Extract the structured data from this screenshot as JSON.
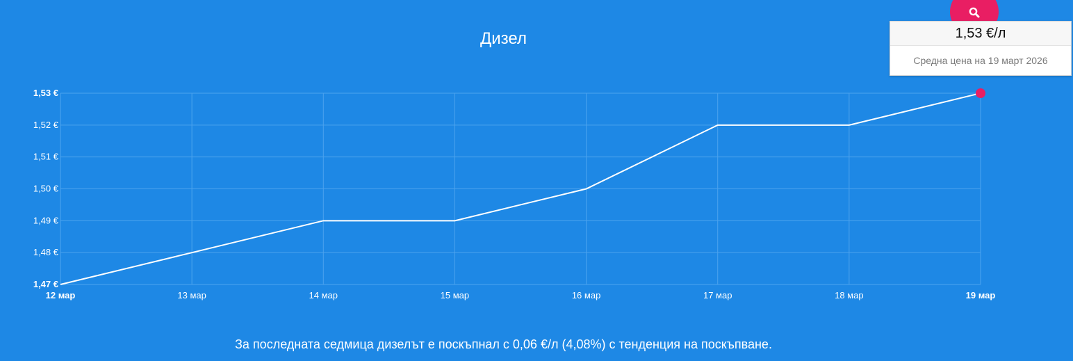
{
  "colors": {
    "background": "#1e88e5",
    "line": "#ffffff",
    "point": "#e91e63",
    "grid": "#4ca3ee",
    "label": "#ffffff"
  },
  "search": {
    "icon": "search-icon"
  },
  "tooltip": {
    "price": "1,53 €/л",
    "description": "Средна цена на 19 март 2026"
  },
  "summary": "За последната седмица дизелът е поскъпнал с 0,06 €/л (4,08%) с тенденция на поскъпване.",
  "chart_data": {
    "type": "line",
    "title": "Дизел",
    "categories": [
      "12 мар",
      "13 мар",
      "14 мар",
      "15 мар",
      "16 мар",
      "17 мар",
      "18 мар",
      "19 мар"
    ],
    "values": [
      1.47,
      1.48,
      1.49,
      1.49,
      1.5,
      1.52,
      1.52,
      1.53
    ],
    "y_ticks": [
      1.53,
      1.52,
      1.51,
      1.5,
      1.49,
      1.48,
      1.47
    ],
    "y_tick_labels": [
      "1,53 €",
      "1,52 €",
      "1,51 €",
      "1,50 €",
      "1,49 €",
      "1,48 €",
      "1,47 €"
    ],
    "bold_y_ticks": [
      "1,53 €",
      "1,47 €"
    ],
    "bold_x_ticks": [
      "12 мар",
      "19 мар"
    ],
    "ylim": [
      1.47,
      1.53
    ],
    "highlighted_point": "19 мар",
    "grid": true,
    "xlabel": "",
    "ylabel": ""
  }
}
